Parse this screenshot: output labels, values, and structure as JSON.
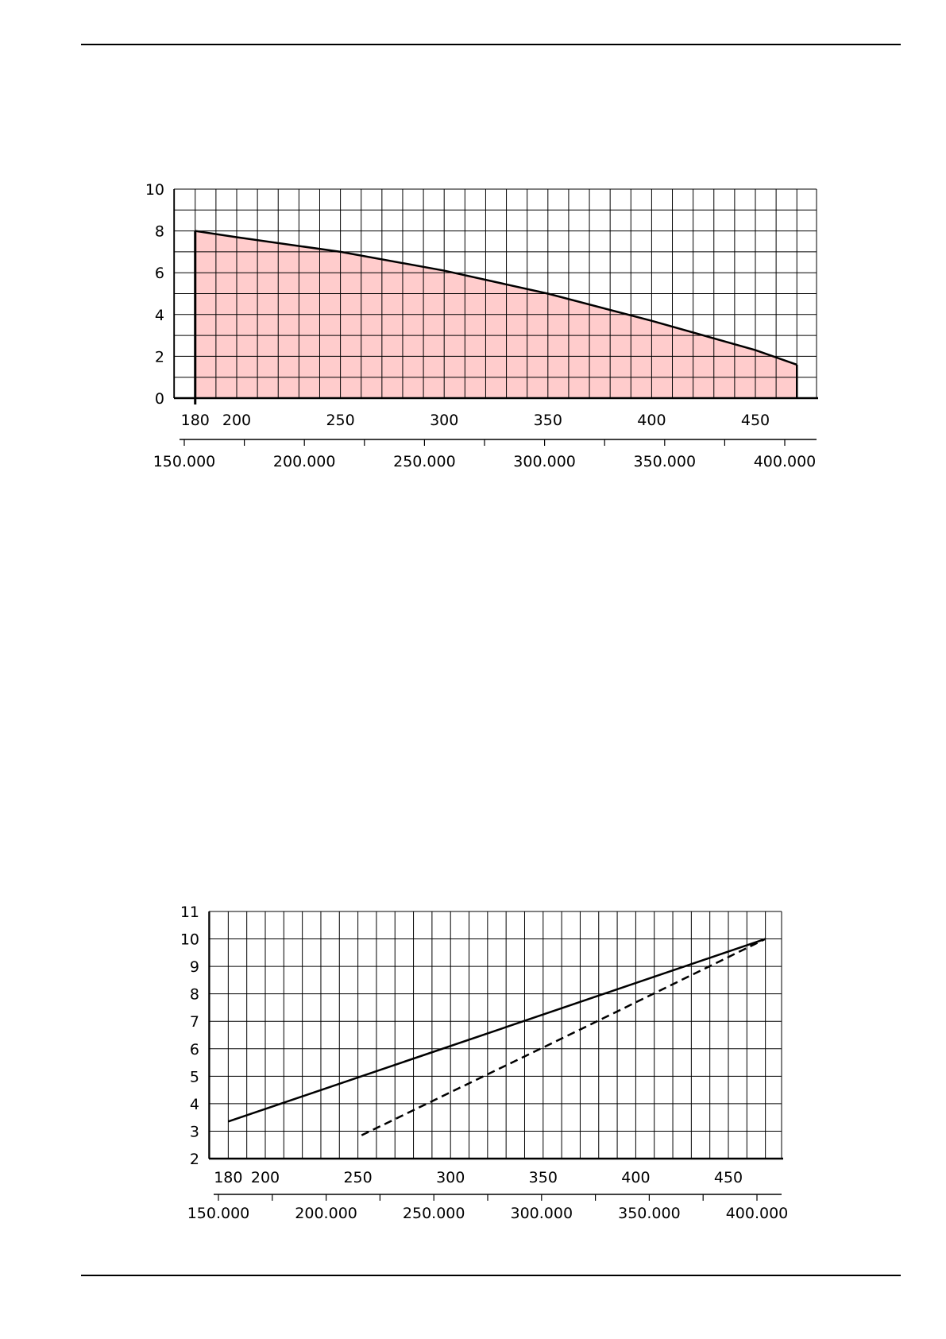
{
  "chart_data": [
    {
      "type": "area",
      "x": [
        180,
        200,
        250,
        300,
        350,
        400,
        450,
        470
      ],
      "y": [
        8,
        7.7,
        7.0,
        6.1,
        5.0,
        3.7,
        2.3,
        1.6
      ],
      "fill_color": "#ffcccc",
      "line_color": "#000000",
      "xlim": [
        170,
        480
      ],
      "ylim": [
        0,
        10
      ],
      "x_ticks": [
        180,
        200,
        250,
        300,
        350,
        400,
        450
      ],
      "y_ticks": [
        0,
        2,
        4,
        6,
        8,
        10
      ],
      "secondary_x_ticks": [
        "150.000",
        "200.000",
        "250.000",
        "300.000",
        "350.000",
        "400.000"
      ],
      "secondary_x_values": [
        150000,
        200000,
        250000,
        300000,
        350000,
        400000
      ],
      "grid": true
    },
    {
      "type": "line",
      "xlim": [
        170,
        480
      ],
      "ylim": [
        2,
        11
      ],
      "x_ticks": [
        180,
        200,
        250,
        300,
        350,
        400,
        450
      ],
      "y_ticks": [
        2,
        3,
        4,
        5,
        6,
        7,
        8,
        9,
        10,
        11
      ],
      "secondary_x_ticks": [
        "150.000",
        "200.000",
        "250.000",
        "300.000",
        "350.000",
        "400.000"
      ],
      "secondary_x_values": [
        150000,
        200000,
        250000,
        300000,
        350000,
        400000
      ],
      "grid": true,
      "series": [
        {
          "style": "solid",
          "x": [
            180,
            470
          ],
          "y": [
            3.35,
            10
          ]
        },
        {
          "style": "dashed",
          "x": [
            252,
            370,
            470
          ],
          "y": [
            2.85,
            6.7,
            10
          ]
        }
      ]
    }
  ]
}
